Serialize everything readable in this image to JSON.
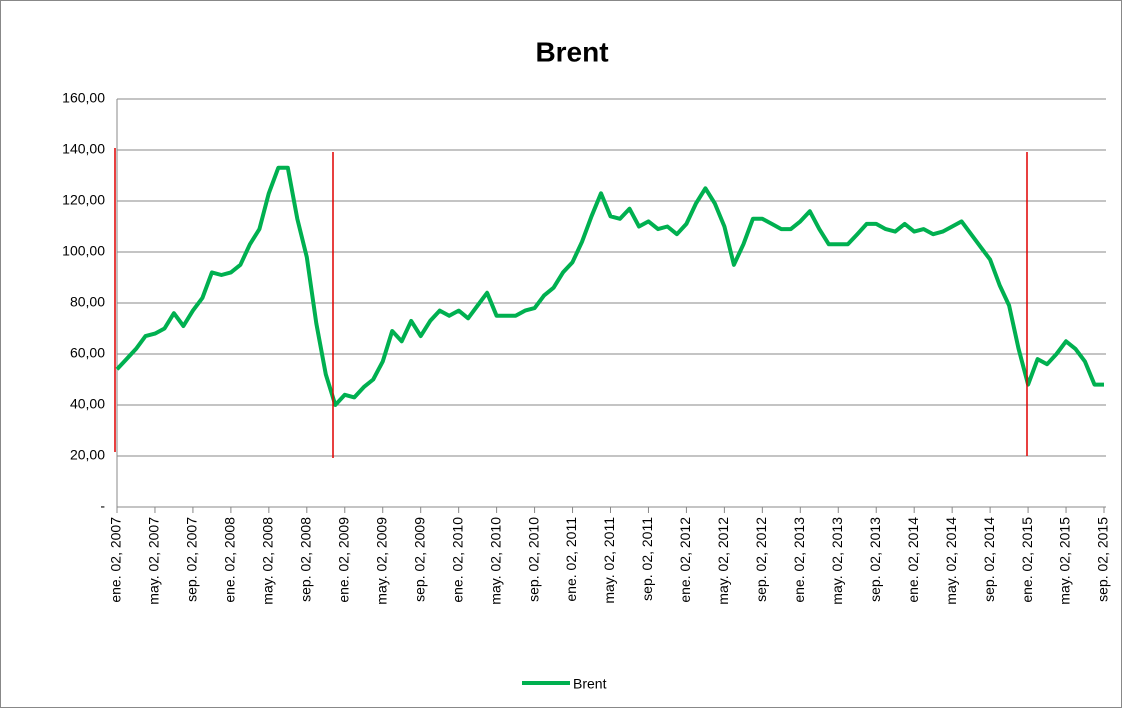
{
  "chart_data": {
    "type": "line",
    "title": "Brent",
    "categories": [
      "ene. 02, 2007",
      null,
      null,
      null,
      "may. 02, 2007",
      null,
      null,
      null,
      "sep. 02, 2007",
      null,
      null,
      null,
      "ene. 02, 2008",
      null,
      null,
      null,
      "may. 02, 2008",
      null,
      null,
      null,
      "sep. 02, 2008",
      null,
      null,
      null,
      "ene. 02, 2009",
      null,
      null,
      null,
      "may. 02, 2009",
      null,
      null,
      null,
      "sep. 02, 2009",
      null,
      null,
      null,
      "ene. 02, 2010",
      null,
      null,
      null,
      "may. 02, 2010",
      null,
      null,
      null,
      "sep. 02, 2010",
      null,
      null,
      null,
      "ene. 02, 2011",
      null,
      null,
      null,
      "may. 02, 2011",
      null,
      null,
      null,
      "sep. 02, 2011",
      null,
      null,
      null,
      "ene. 02, 2012",
      null,
      null,
      null,
      "may. 02, 2012",
      null,
      null,
      null,
      "sep. 02, 2012",
      null,
      null,
      null,
      "ene. 02, 2013",
      null,
      null,
      null,
      "may. 02, 2013",
      null,
      null,
      null,
      "sep. 02, 2013",
      null,
      null,
      null,
      "ene. 02, 2014",
      null,
      null,
      null,
      "may. 02, 2014",
      null,
      null,
      null,
      "sep. 02, 2014",
      null,
      null,
      null,
      "ene. 02, 2015",
      null,
      null,
      null,
      "may. 02, 2015",
      null,
      null,
      null,
      "sep. 02, 2015"
    ],
    "series": [
      {
        "name": "Brent",
        "color": "#00b050",
        "values": [
          54,
          58,
          62,
          67,
          68,
          70,
          76,
          71,
          77,
          82,
          92,
          91,
          92,
          95,
          103,
          109,
          123,
          133,
          133,
          113,
          98,
          72,
          52,
          40,
          44,
          43,
          47,
          50,
          57,
          69,
          65,
          73,
          67,
          73,
          77,
          75,
          77,
          74,
          79,
          84,
          75,
          75,
          75,
          77,
          78,
          83,
          86,
          92,
          96,
          104,
          114,
          123,
          114,
          113,
          117,
          110,
          112,
          109,
          110,
          107,
          111,
          119,
          125,
          119,
          110,
          95,
          103,
          113,
          113,
          111,
          109,
          109,
          112,
          116,
          109,
          103,
          103,
          103,
          107,
          111,
          111,
          109,
          108,
          111,
          108,
          109,
          107,
          108,
          110,
          112,
          107,
          102,
          97,
          87,
          79,
          62,
          48,
          58,
          56,
          60,
          65,
          62,
          57,
          48,
          48
        ]
      }
    ],
    "ylim": [
      0,
      160
    ],
    "yticks": [
      {
        "value": 0,
        "label": "-"
      },
      {
        "value": 20,
        "label": "20,00"
      },
      {
        "value": 40,
        "label": "40,00"
      },
      {
        "value": 60,
        "label": "60,00"
      },
      {
        "value": 80,
        "label": "80,00"
      },
      {
        "value": 100,
        "label": "100,00"
      },
      {
        "value": 120,
        "label": "120,00"
      },
      {
        "value": 140,
        "label": "140,00"
      },
      {
        "value": 160,
        "label": "160,00"
      }
    ],
    "grid": true,
    "legend": "bottom"
  }
}
